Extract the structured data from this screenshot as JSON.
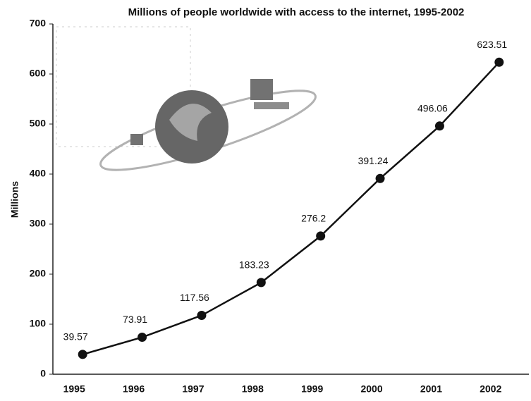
{
  "chart_data": {
    "type": "line",
    "title": "Millions of people worldwide with access to the internet, 1995-2002",
    "ylabel": "Millions",
    "categories": [
      "1995",
      "1996",
      "1997",
      "1998",
      "1999",
      "2000",
      "2001",
      "2002"
    ],
    "values": [
      39.57,
      73.91,
      117.56,
      183.23,
      276.2,
      391.24,
      496.06,
      623.51
    ],
    "color": "#111111",
    "ylim": [
      0,
      700
    ],
    "yticks": [
      0,
      100,
      200,
      300,
      400,
      500,
      600,
      700
    ],
    "grid": false
  }
}
